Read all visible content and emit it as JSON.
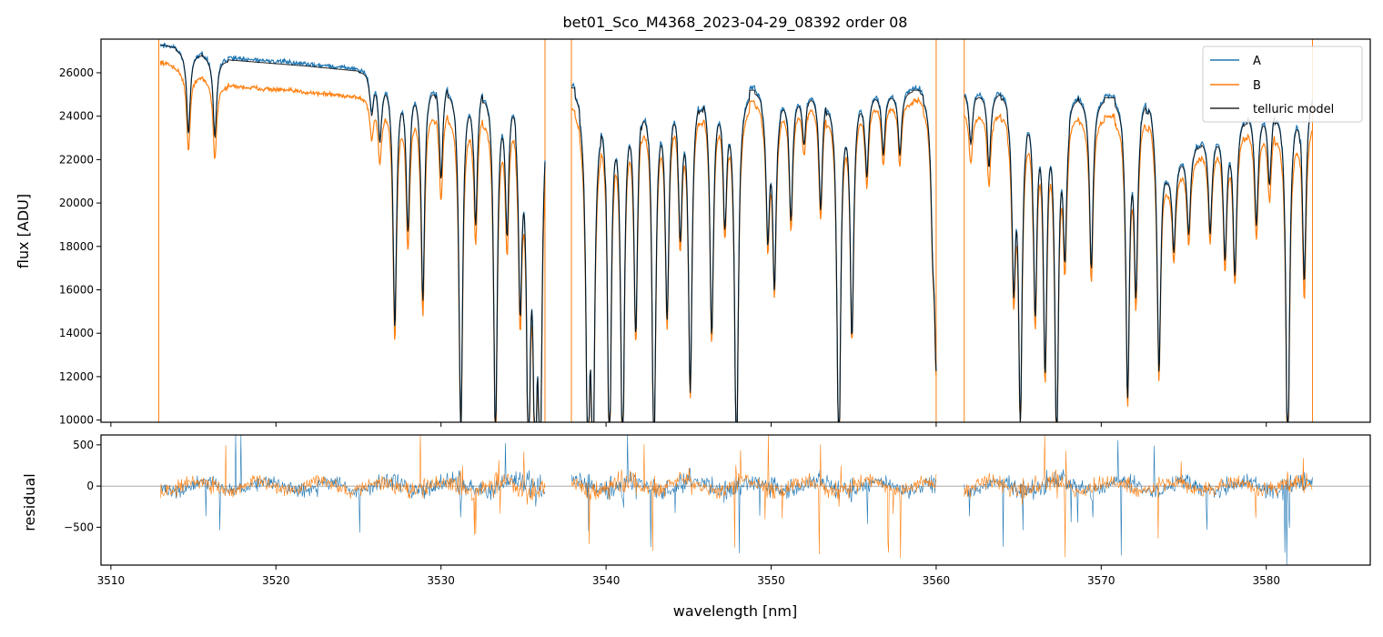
{
  "chart_data": [
    {
      "type": "line",
      "title": "bet01_Sco_M4368_2023-04-29_08392  order 08",
      "xlabel": "",
      "ylabel": "flux [ADU]",
      "xlim": [
        3509.4,
        3586.3
      ],
      "ylim": [
        9900,
        27550
      ],
      "yticks": [
        10000,
        12000,
        14000,
        16000,
        18000,
        20000,
        22000,
        24000,
        26000
      ],
      "xticks": [
        3510,
        3520,
        3530,
        3540,
        3550,
        3560,
        3570,
        3580
      ],
      "legend": {
        "placement": "top-right",
        "entries": [
          "A",
          "B",
          "telluric model"
        ]
      },
      "segments": [
        [
          3513.0,
          3536.3
        ],
        [
          3537.9,
          3560.0
        ],
        [
          3561.7,
          3582.8
        ]
      ],
      "spikes": [
        3512.9,
        3536.3,
        3537.9,
        3560.0,
        3561.7,
        3582.8
      ],
      "absorption_lines": [
        {
          "x": 3514.7,
          "depth": 0.14
        },
        {
          "x": 3516.3,
          "depth": 0.14
        },
        {
          "x": 3525.8,
          "depth": 0.07
        },
        {
          "x": 3526.3,
          "depth": 0.12
        },
        {
          "x": 3527.2,
          "depth": 0.45
        },
        {
          "x": 3528.0,
          "depth": 0.28
        },
        {
          "x": 3528.9,
          "depth": 0.4
        },
        {
          "x": 3530.0,
          "depth": 0.18
        },
        {
          "x": 3531.2,
          "depth": 0.65
        },
        {
          "x": 3532.1,
          "depth": 0.26
        },
        {
          "x": 3533.3,
          "depth": 0.65
        },
        {
          "x": 3534.0,
          "depth": 0.26
        },
        {
          "x": 3534.8,
          "depth": 0.4
        },
        {
          "x": 3535.3,
          "depth": 0.7
        },
        {
          "x": 3535.7,
          "depth": 0.7
        },
        {
          "x": 3536.0,
          "depth": 0.7
        },
        {
          "x": 3538.9,
          "depth": 0.7
        },
        {
          "x": 3539.2,
          "depth": 0.7
        },
        {
          "x": 3540.2,
          "depth": 0.7
        },
        {
          "x": 3541.0,
          "depth": 0.7
        },
        {
          "x": 3541.8,
          "depth": 0.45
        },
        {
          "x": 3542.9,
          "depth": 0.7
        },
        {
          "x": 3543.7,
          "depth": 0.42
        },
        {
          "x": 3544.5,
          "depth": 0.26
        },
        {
          "x": 3545.1,
          "depth": 0.55
        },
        {
          "x": 3546.4,
          "depth": 0.45
        },
        {
          "x": 3547.2,
          "depth": 0.24
        },
        {
          "x": 3547.9,
          "depth": 0.7
        },
        {
          "x": 3549.8,
          "depth": 0.26
        },
        {
          "x": 3550.2,
          "depth": 0.35
        },
        {
          "x": 3551.2,
          "depth": 0.24
        },
        {
          "x": 3552.0,
          "depth": 0.1
        },
        {
          "x": 3553.0,
          "depth": 0.22
        },
        {
          "x": 3554.1,
          "depth": 0.7
        },
        {
          "x": 3554.9,
          "depth": 0.45
        },
        {
          "x": 3555.8,
          "depth": 0.16
        },
        {
          "x": 3556.8,
          "depth": 0.12
        },
        {
          "x": 3557.8,
          "depth": 0.12
        },
        {
          "x": 3559.8,
          "depth": 0.22
        },
        {
          "x": 3560.0,
          "depth": 0.48
        },
        {
          "x": 3562.1,
          "depth": 0.1
        },
        {
          "x": 3563.2,
          "depth": 0.14
        },
        {
          "x": 3564.7,
          "depth": 0.34
        },
        {
          "x": 3565.1,
          "depth": 0.6
        },
        {
          "x": 3566.0,
          "depth": 0.4
        },
        {
          "x": 3566.6,
          "depth": 0.5
        },
        {
          "x": 3567.3,
          "depth": 0.65
        },
        {
          "x": 3567.8,
          "depth": 0.28
        },
        {
          "x": 3569.4,
          "depth": 0.32
        },
        {
          "x": 3571.6,
          "depth": 0.55
        },
        {
          "x": 3572.1,
          "depth": 0.35
        },
        {
          "x": 3573.5,
          "depth": 0.48
        },
        {
          "x": 3574.4,
          "depth": 0.2
        },
        {
          "x": 3575.3,
          "depth": 0.18
        },
        {
          "x": 3576.6,
          "depth": 0.2
        },
        {
          "x": 3577.5,
          "depth": 0.26
        },
        {
          "x": 3578.1,
          "depth": 0.3
        },
        {
          "x": 3579.4,
          "depth": 0.22
        },
        {
          "x": 3580.2,
          "depth": 0.15
        },
        {
          "x": 3581.3,
          "depth": 0.7
        },
        {
          "x": 3582.3,
          "depth": 0.35
        }
      ],
      "series": [
        {
          "name": "A",
          "color": "#1f77b4",
          "continuum": [
            {
              "x": 3513.0,
              "y": 27300
            },
            {
              "x": 3517.0,
              "y": 26700
            },
            {
              "x": 3522.0,
              "y": 26400
            },
            {
              "x": 3526.0,
              "y": 26100
            },
            {
              "x": 3530.0,
              "y": 25800
            },
            {
              "x": 3535.0,
              "y": 25600
            },
            {
              "x": 3538.0,
              "y": 25400
            },
            {
              "x": 3545.0,
              "y": 25300
            },
            {
              "x": 3560.0,
              "y": 25300
            },
            {
              "x": 3562.0,
              "y": 25300
            },
            {
              "x": 3568.0,
              "y": 25000
            },
            {
              "x": 3573.0,
              "y": 24900
            },
            {
              "x": 3574.0,
              "y": 22000
            },
            {
              "x": 3578.0,
              "y": 24000
            },
            {
              "x": 3582.8,
              "y": 25300
            }
          ]
        },
        {
          "name": "B",
          "color": "#ff7f0e",
          "continuum": [
            {
              "x": 3513.0,
              "y": 26500
            },
            {
              "x": 3517.0,
              "y": 25400
            },
            {
              "x": 3522.0,
              "y": 25100
            },
            {
              "x": 3526.0,
              "y": 24800
            },
            {
              "x": 3530.0,
              "y": 24500
            },
            {
              "x": 3535.0,
              "y": 24300
            },
            {
              "x": 3538.0,
              "y": 24300
            },
            {
              "x": 3545.0,
              "y": 24600
            },
            {
              "x": 3560.0,
              "y": 24700
            },
            {
              "x": 3562.0,
              "y": 24200
            },
            {
              "x": 3568.0,
              "y": 24000
            },
            {
              "x": 3573.0,
              "y": 24000
            },
            {
              "x": 3574.0,
              "y": 21300
            },
            {
              "x": 3578.0,
              "y": 23300
            },
            {
              "x": 3582.8,
              "y": 23900
            }
          ]
        },
        {
          "name": "telluric model",
          "color": "#000000",
          "continuum": [
            {
              "x": 3513.0,
              "y": 27300
            },
            {
              "x": 3517.0,
              "y": 26600
            },
            {
              "x": 3522.0,
              "y": 26300
            },
            {
              "x": 3526.0,
              "y": 26000
            },
            {
              "x": 3530.0,
              "y": 25700
            },
            {
              "x": 3535.0,
              "y": 25500
            },
            {
              "x": 3538.0,
              "y": 25300
            },
            {
              "x": 3545.0,
              "y": 25200
            },
            {
              "x": 3560.0,
              "y": 25200
            },
            {
              "x": 3562.0,
              "y": 25200
            },
            {
              "x": 3568.0,
              "y": 24900
            },
            {
              "x": 3573.0,
              "y": 24800
            },
            {
              "x": 3574.0,
              "y": 21900
            },
            {
              "x": 3578.0,
              "y": 23900
            },
            {
              "x": 3582.8,
              "y": 25200
            }
          ]
        }
      ]
    },
    {
      "type": "line",
      "title": "",
      "xlabel": "wavelength [nm]",
      "ylabel": "residual",
      "xlim": [
        3509.4,
        3586.3
      ],
      "ylim": [
        -960,
        620
      ],
      "yticks": [
        -500,
        0,
        500
      ],
      "xticks": [
        3510,
        3520,
        3530,
        3540,
        3550,
        3560,
        3570,
        3580
      ],
      "zero_line": true,
      "noise_amplitude": 120,
      "series": [
        {
          "name": "A",
          "color": "#1f77b4"
        },
        {
          "name": "B",
          "color": "#ff7f0e"
        }
      ]
    }
  ]
}
